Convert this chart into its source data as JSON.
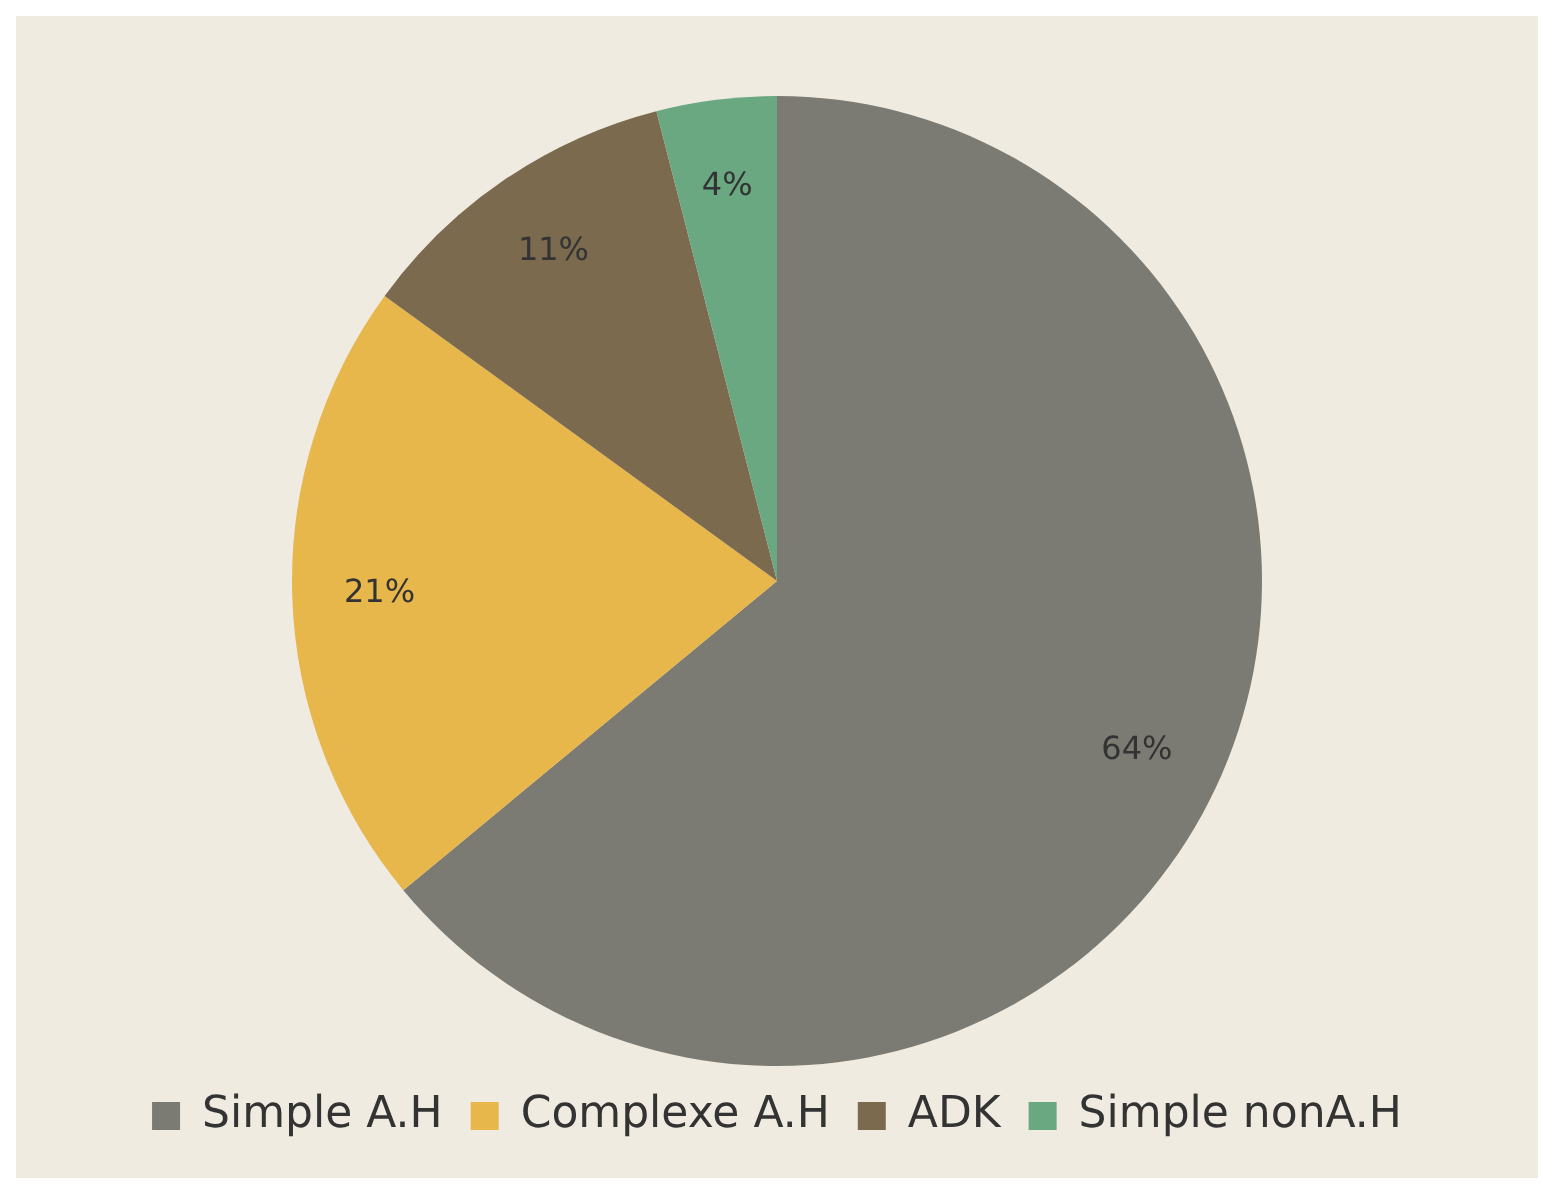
{
  "chart_data": {
    "type": "pie",
    "categories": [
      "Simple A.H",
      "Complexe A.H",
      "ADK",
      "Simple nonA.H"
    ],
    "values": [
      64,
      21,
      11,
      4
    ],
    "value_labels": [
      "64%",
      "21%",
      "11%",
      "4%"
    ],
    "colors": [
      "#7b7b73",
      "#e7b74c",
      "#7c6a4f",
      "#6aa882"
    ],
    "legend": "bottom"
  }
}
